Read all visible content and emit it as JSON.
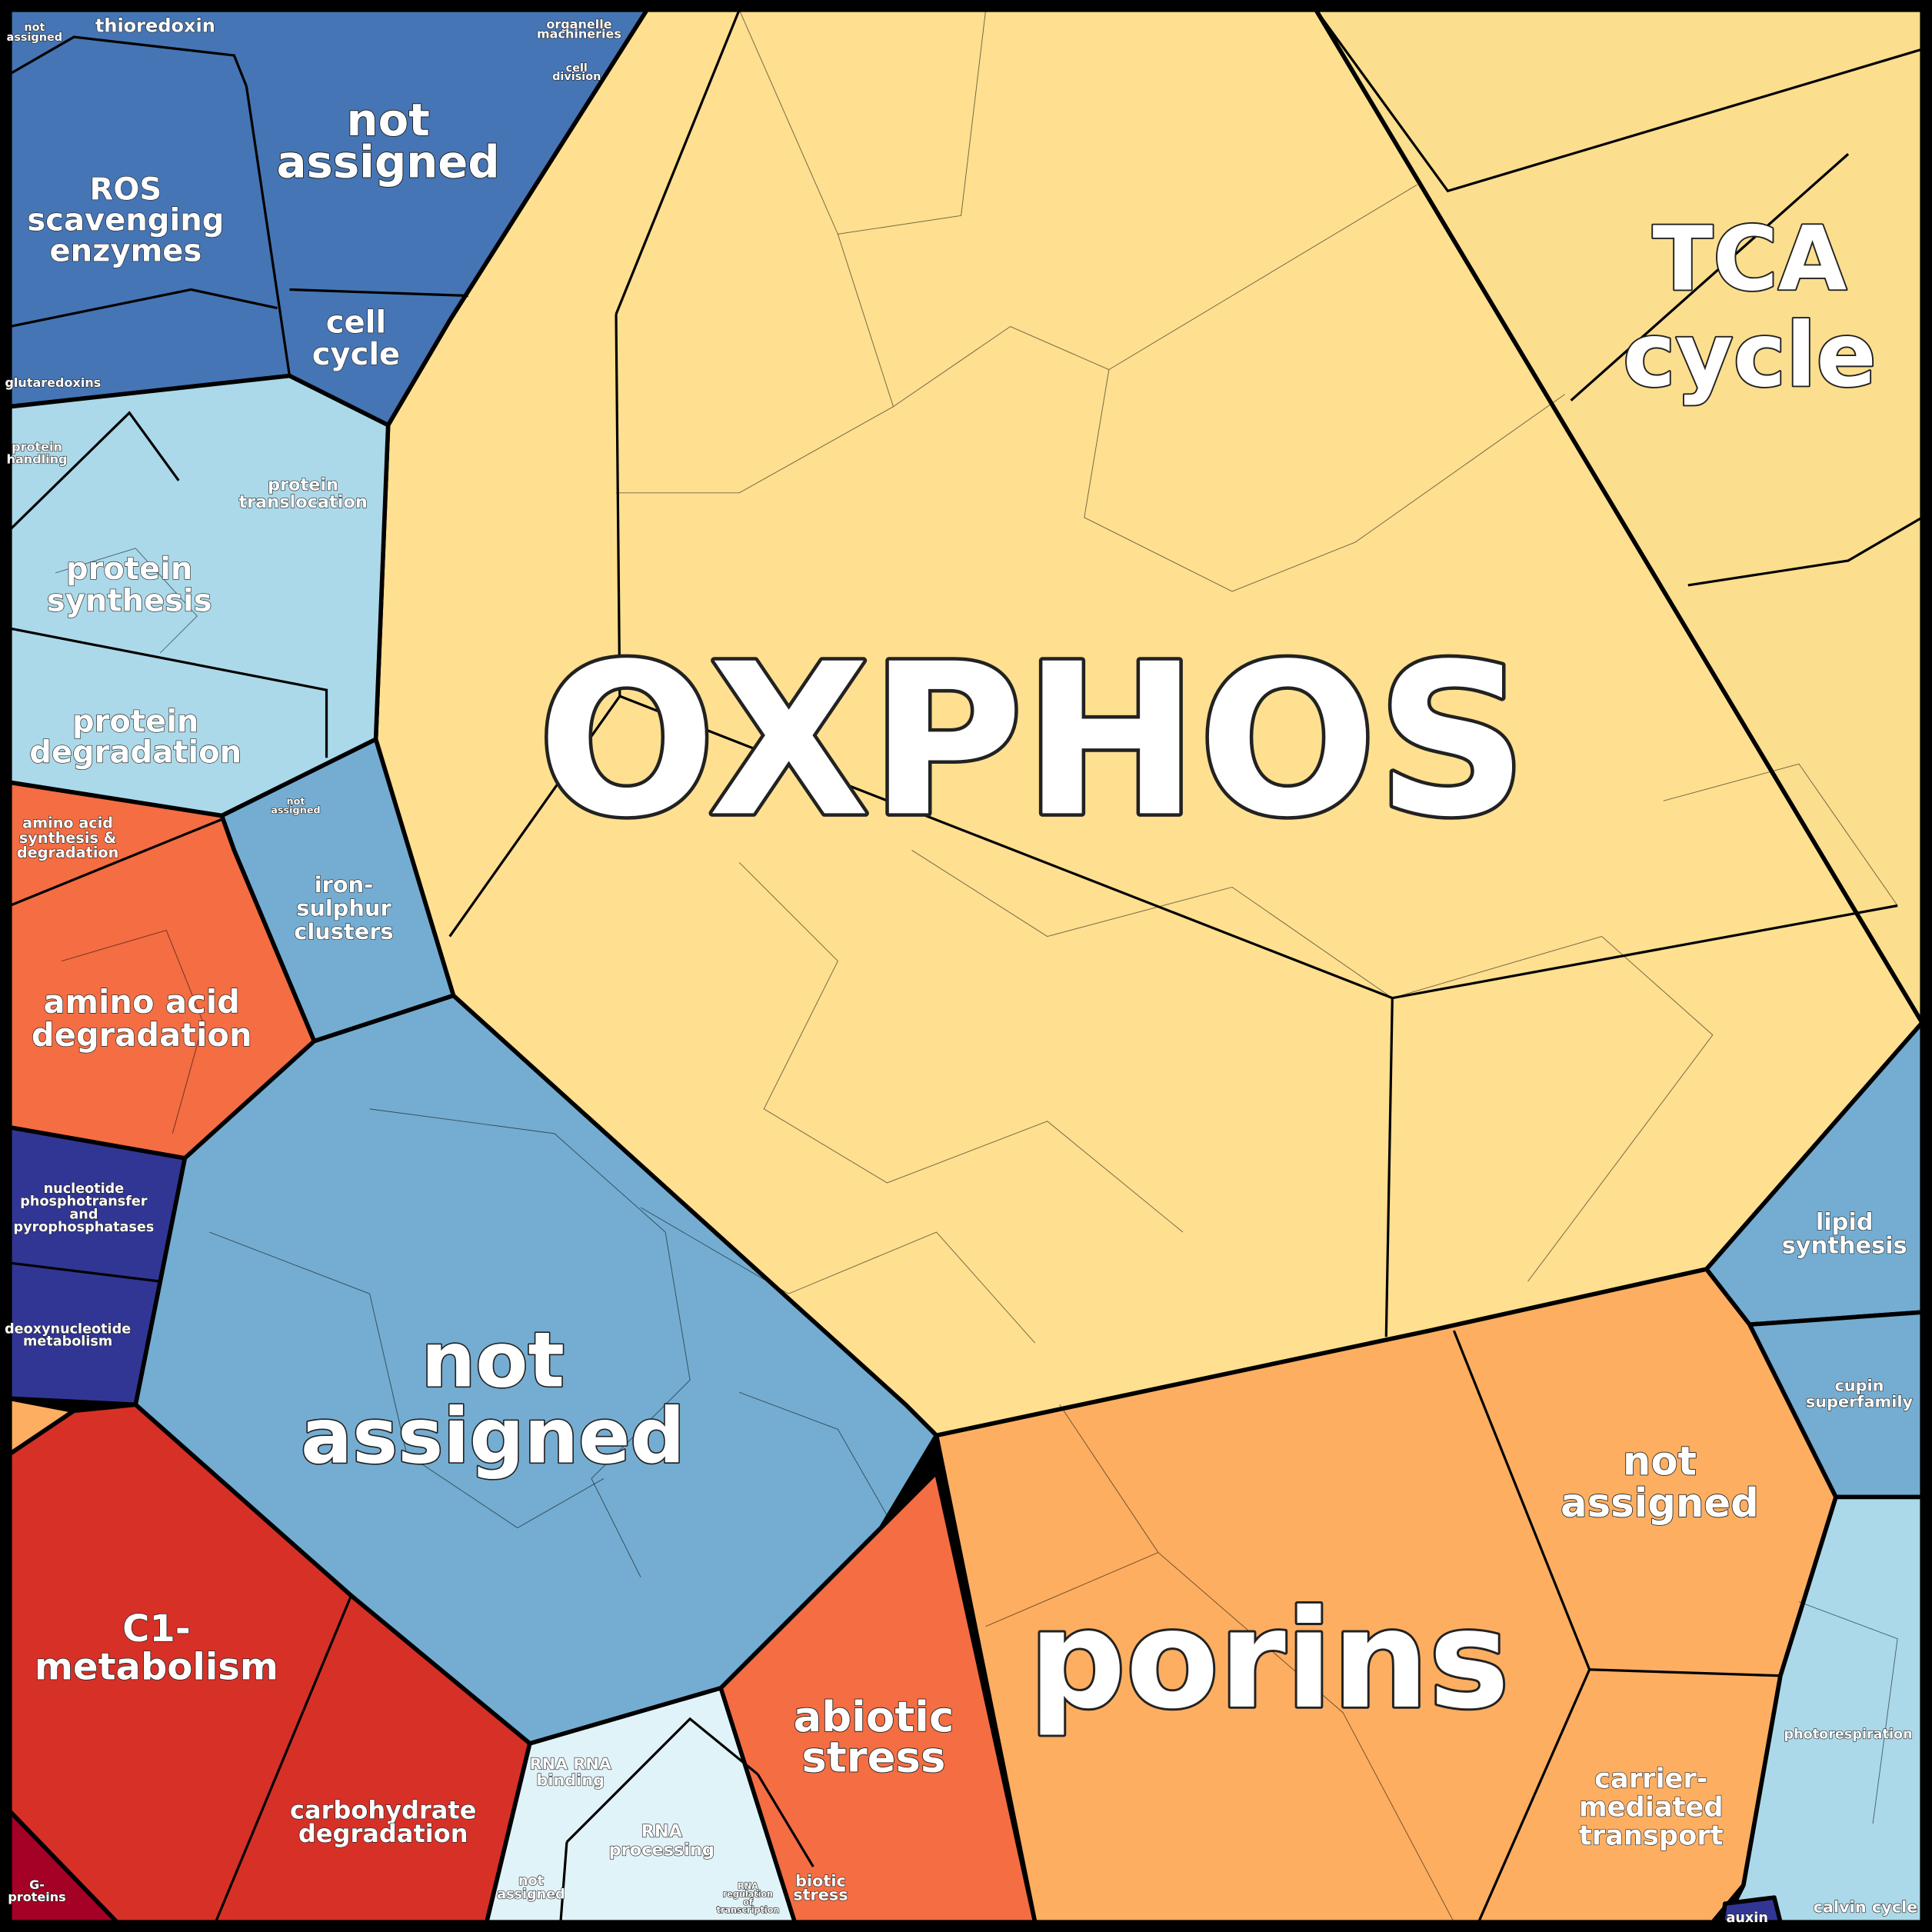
{
  "labels": [
    {
      "lines": [
        "OXPHOS"
      ]
    },
    {
      "lines": [
        "porins"
      ]
    },
    {
      "lines": [
        "TCA",
        "cycle"
      ]
    },
    {
      "lines": [
        "not",
        "assigned"
      ]
    },
    {
      "lines": [
        "not",
        "assigned"
      ]
    },
    {
      "lines": [
        "ROS",
        "scavenging",
        "enzymes"
      ]
    },
    {
      "lines": [
        "cell",
        "cycle"
      ]
    },
    {
      "lines": [
        "thioredoxin"
      ]
    },
    {
      "lines": [
        "not",
        "assigned"
      ]
    },
    {
      "lines": [
        "organelle",
        "machineries"
      ]
    },
    {
      "lines": [
        "cell",
        "division"
      ]
    },
    {
      "lines": [
        "glutaredoxins"
      ]
    },
    {
      "lines": [
        "protein",
        "handling"
      ]
    },
    {
      "lines": [
        "protein",
        "translocation"
      ]
    },
    {
      "lines": [
        "protein",
        "synthesis"
      ]
    },
    {
      "lines": [
        "protein",
        "degradation"
      ]
    },
    {
      "lines": [
        "not",
        "assigned"
      ]
    },
    {
      "lines": [
        "iron-",
        "sulphur",
        "clusters"
      ]
    },
    {
      "lines": [
        "amino acid",
        "synthesis &",
        "degradation"
      ]
    },
    {
      "lines": [
        "amino acid",
        "degradation"
      ]
    },
    {
      "lines": [
        "nucleotide",
        "phosphotransfer",
        "and",
        "pyrophosphatases"
      ]
    },
    {
      "lines": [
        "deoxynucleotide",
        "metabolism"
      ]
    },
    {
      "lines": [
        "C1-",
        "metabolism"
      ]
    },
    {
      "lines": [
        "carbohydrate",
        "degradation"
      ]
    },
    {
      "lines": [
        "G-",
        "proteins"
      ]
    },
    {
      "lines": [
        "RNA RNA",
        "binding"
      ]
    },
    {
      "lines": [
        "RNA",
        "processing"
      ]
    },
    {
      "lines": [
        "not",
        "assigned"
      ]
    },
    {
      "lines": [
        "RNA",
        "regulation",
        "of",
        "transcription"
      ]
    },
    {
      "lines": [
        "abiotic",
        "stress"
      ]
    },
    {
      "lines": [
        "biotic",
        "stress"
      ]
    },
    {
      "lines": [
        "not",
        "assigned"
      ]
    },
    {
      "lines": [
        "carrier-",
        "mediated",
        "transport"
      ]
    },
    {
      "lines": [
        "lipid",
        "synthesis"
      ]
    },
    {
      "lines": [
        "cupin",
        "superfamily"
      ]
    },
    {
      "lines": [
        "photorespiration"
      ]
    },
    {
      "lines": [
        "calvin cycle"
      ]
    },
    {
      "lines": [
        "auxin"
      ]
    }
  ]
}
